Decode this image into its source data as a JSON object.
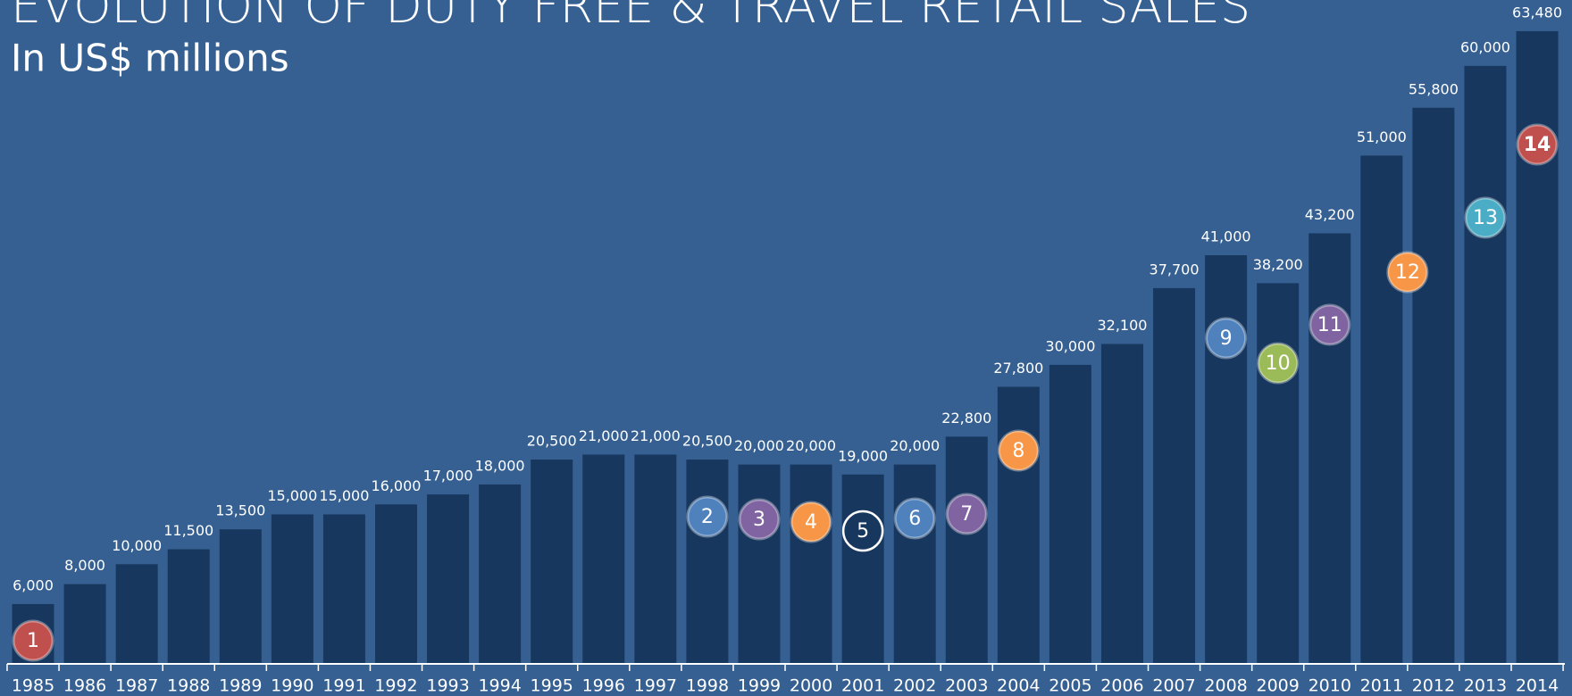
{
  "chart_data": {
    "type": "bar",
    "title": "EVOLUTION OF DUTY FREE & TRAVEL RETAIL SALES",
    "subtitle": "In US$ millions",
    "categories": [
      "1985",
      "1986",
      "1987",
      "1988",
      "1989",
      "1990",
      "1991",
      "1992",
      "1993",
      "1994",
      "1995",
      "1996",
      "1997",
      "1998",
      "1999",
      "2000",
      "2001",
      "2002",
      "2003",
      "2004",
      "2005",
      "2006",
      "2007",
      "2008",
      "2009",
      "2010",
      "2011",
      "2012",
      "2013",
      "2014"
    ],
    "values": [
      6000,
      8000,
      10000,
      11500,
      13500,
      15000,
      15000,
      16000,
      17000,
      18000,
      20500,
      21000,
      21000,
      20500,
      20000,
      20000,
      19000,
      20000,
      22800,
      27800,
      30000,
      32100,
      37700,
      41000,
      38200,
      43200,
      51000,
      55800,
      60000,
      63480
    ],
    "value_labels": [
      "6,000",
      "8,000",
      "10,000",
      "11,500",
      "13,500",
      "15,000",
      "15,000",
      "16,000",
      "17,000",
      "18,000",
      "20,500",
      "21,000",
      "21,000",
      "20,500",
      "20,000",
      "20,000",
      "19,000",
      "20,000",
      "22,800",
      "27,800",
      "30,000",
      "32,100",
      "37,700",
      "41,000",
      "38,200",
      "43,200",
      "51,000",
      "55,800",
      "60,000",
      "63,480"
    ],
    "color": "#17375e",
    "ylim": [
      0,
      65000
    ],
    "annotations": [
      {
        "label": "1",
        "color": "#c0504d"
      },
      {
        "label": "2",
        "color": "#4f81bd"
      },
      {
        "label": "3",
        "color": "#8064a2"
      },
      {
        "label": "4",
        "color": "#f79646"
      },
      {
        "label": "5",
        "color": "#17375e"
      },
      {
        "label": "6",
        "color": "#4f81bd"
      },
      {
        "label": "7",
        "color": "#8064a2"
      },
      {
        "label": "8",
        "color": "#f79646"
      },
      {
        "label": "9",
        "color": "#4f81bd"
      },
      {
        "label": "10",
        "color": "#9bbb59"
      },
      {
        "label": "11",
        "color": "#8064a2"
      },
      {
        "label": "12",
        "color": "#f79646"
      },
      {
        "label": "13",
        "color": "#4bacc6"
      },
      {
        "label": "14",
        "color": "#c0504d"
      }
    ]
  }
}
